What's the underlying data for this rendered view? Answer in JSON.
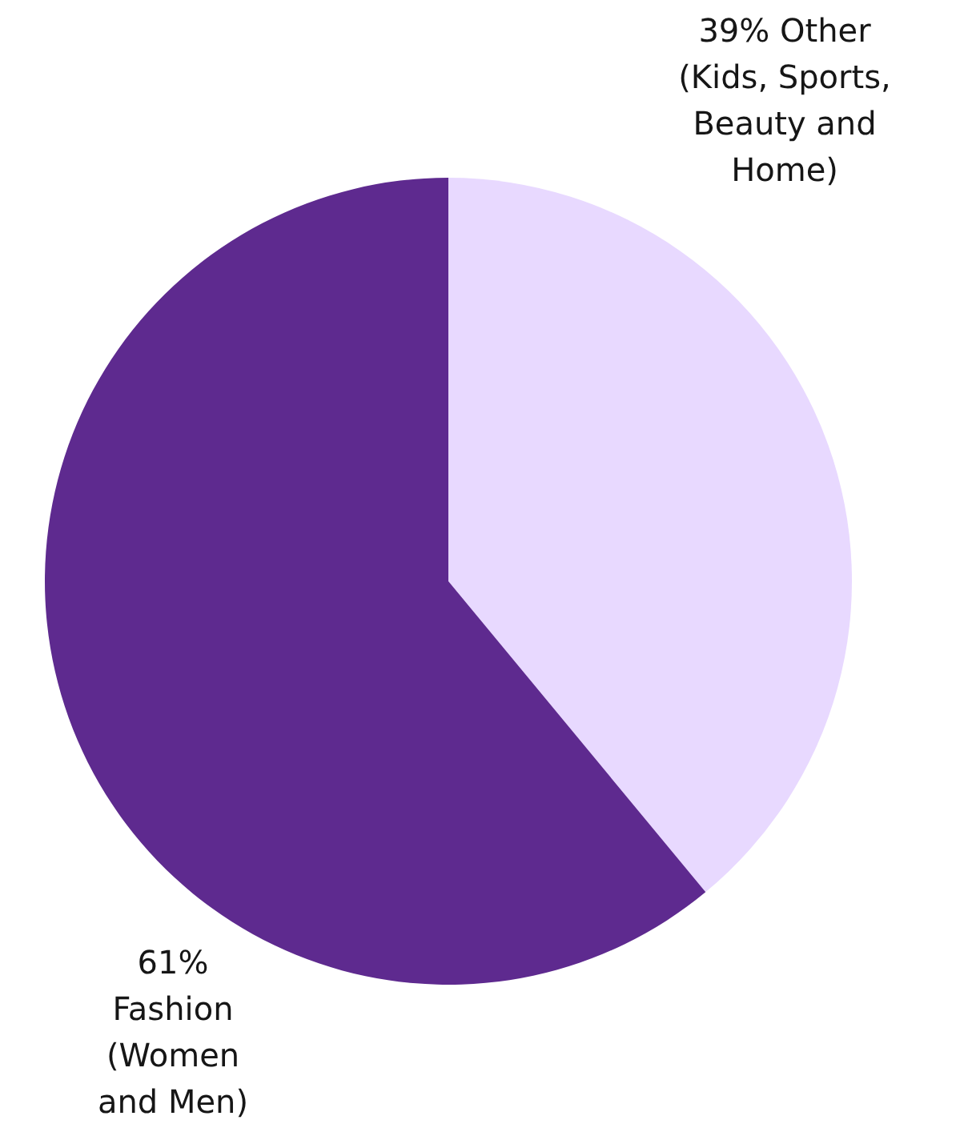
{
  "chart_data": {
    "type": "pie",
    "categories": [
      "Other (Kids, Sports, Beauty and Home)",
      "Fashion (Women and Men)"
    ],
    "values": [
      39,
      61
    ],
    "value_labels": [
      "39%",
      "61%"
    ],
    "colors": [
      "#e8d9ff",
      "#5e2a8f"
    ]
  }
}
